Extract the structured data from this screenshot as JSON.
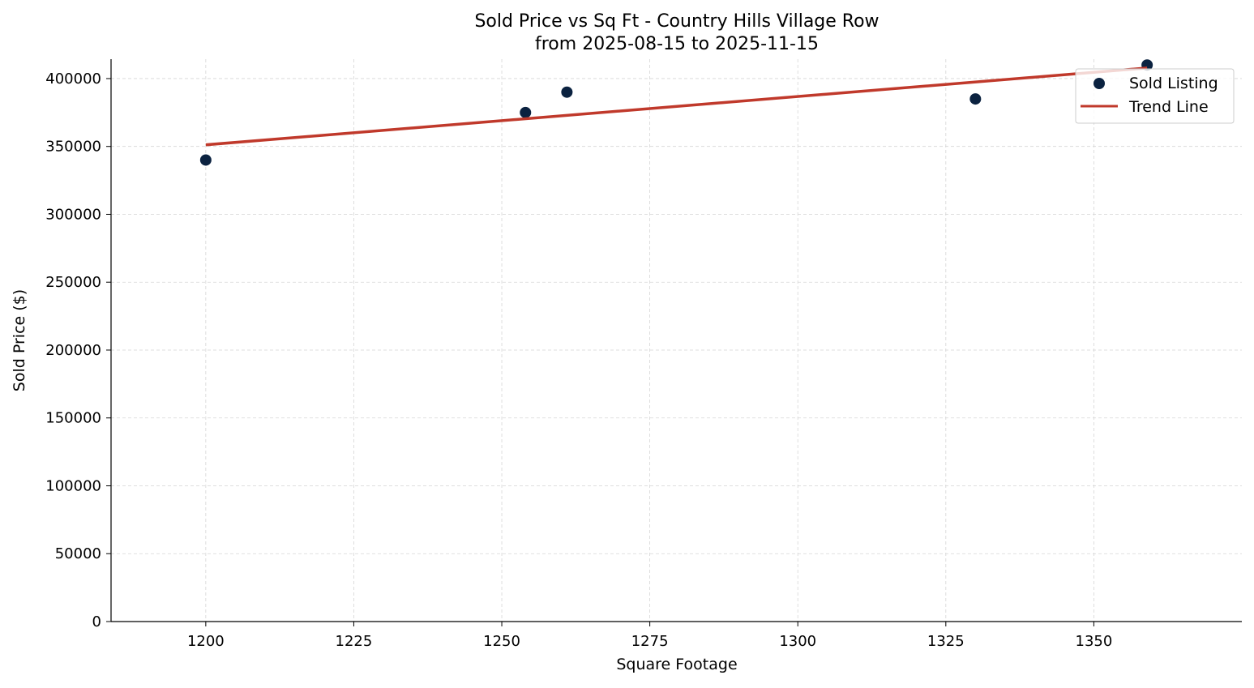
{
  "chart_data": {
    "type": "scatter",
    "title": "Sold Price vs Sq Ft - Country Hills Village Row",
    "subtitle": "from 2025-08-15 to 2025-11-15",
    "xlabel": "Square Footage",
    "ylabel": "Sold Price ($)",
    "xlim": [
      1184,
      1375
    ],
    "ylim": [
      0,
      414300
    ],
    "xticks": [
      1200,
      1225,
      1250,
      1275,
      1300,
      1325,
      1350
    ],
    "yticks": [
      0,
      50000,
      100000,
      150000,
      200000,
      250000,
      300000,
      350000,
      400000
    ],
    "grid": true,
    "legend": {
      "placement": "top-right",
      "entries": [
        "Sold Listing",
        "Trend Line"
      ]
    },
    "series": [
      {
        "name": "Sold Listing",
        "type": "scatter",
        "color": "#0b2240",
        "x": [
          1200,
          1254,
          1261,
          1330,
          1359
        ],
        "y": [
          340000,
          375000,
          390000,
          385000,
          410000
        ]
      },
      {
        "name": "Trend Line",
        "type": "line",
        "color": "#c0392b",
        "x": [
          1200,
          1359
        ],
        "y": [
          351200,
          407800
        ]
      }
    ]
  }
}
